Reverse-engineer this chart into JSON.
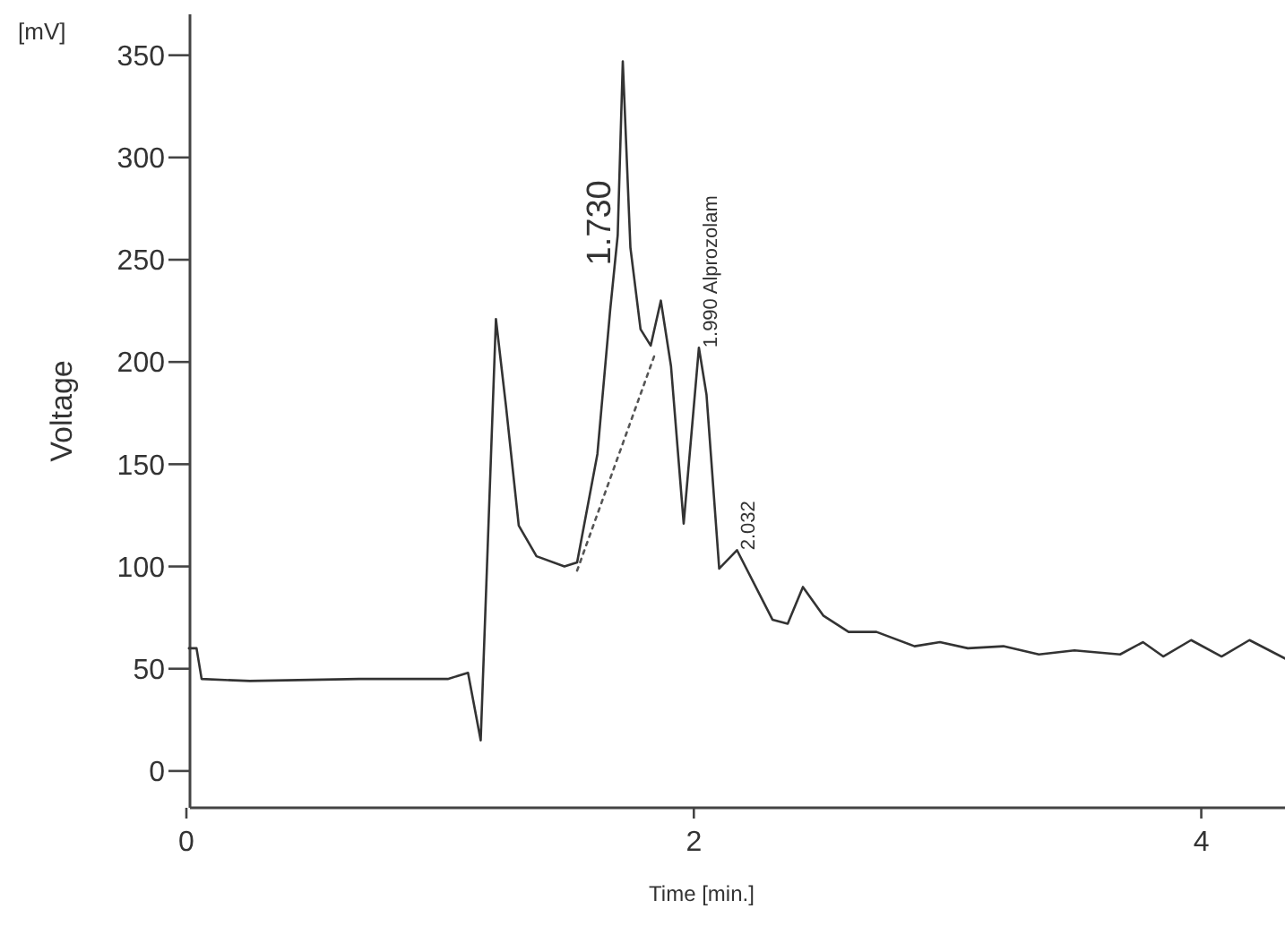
{
  "chart_data": {
    "type": "line",
    "xlabel": "Time [min.]",
    "ylabel": "Voltage",
    "xlim": [
      0,
      4.33
    ],
    "ylim": [
      -18,
      370
    ],
    "xticks": [
      0,
      2,
      4
    ],
    "yticks": [
      0,
      50,
      100,
      150,
      200,
      250,
      300,
      350
    ],
    "grid": false,
    "annotations": [
      "[mV]",
      {
        "text": "1.730",
        "x": 1.7,
        "y": 268
      },
      {
        "text": "1.990  Alprozolam",
        "x": 2.02,
        "y": 207
      },
      {
        "text": "2.032",
        "x": 2.17,
        "y": 108
      }
    ],
    "series": [
      {
        "color": "#333333",
        "line_style": "solid",
        "x": [
          0.01,
          0.04,
          0.06,
          0.25,
          0.68,
          1.03,
          1.11,
          1.16,
          1.22,
          1.26,
          1.31,
          1.38,
          1.49,
          1.54,
          1.62,
          1.67,
          1.7,
          1.72,
          1.75,
          1.79,
          1.83,
          1.87,
          1.91,
          1.96,
          2.02,
          2.05,
          2.1,
          2.17,
          2.31,
          2.37,
          2.43,
          2.51,
          2.61,
          2.72,
          2.87,
          2.97,
          3.08,
          3.22,
          3.36,
          3.5,
          3.68,
          3.77,
          3.85,
          3.96,
          4.08,
          4.19,
          4.33
        ],
        "values": [
          60,
          60,
          45,
          44,
          45,
          45,
          48,
          15,
          221,
          178,
          120,
          105,
          100,
          102,
          155,
          225,
          262,
          347,
          256,
          216,
          208,
          230,
          198,
          121,
          207,
          184,
          99,
          108,
          74,
          72,
          90,
          76,
          68,
          68,
          61,
          63,
          60,
          61,
          57,
          59,
          57,
          63,
          56,
          64,
          56,
          64,
          55
        ]
      },
      {
        "color": "#555555",
        "line_style": "dotted",
        "x": [
          1.54,
          1.85
        ],
        "values": [
          98,
          205
        ]
      }
    ]
  }
}
